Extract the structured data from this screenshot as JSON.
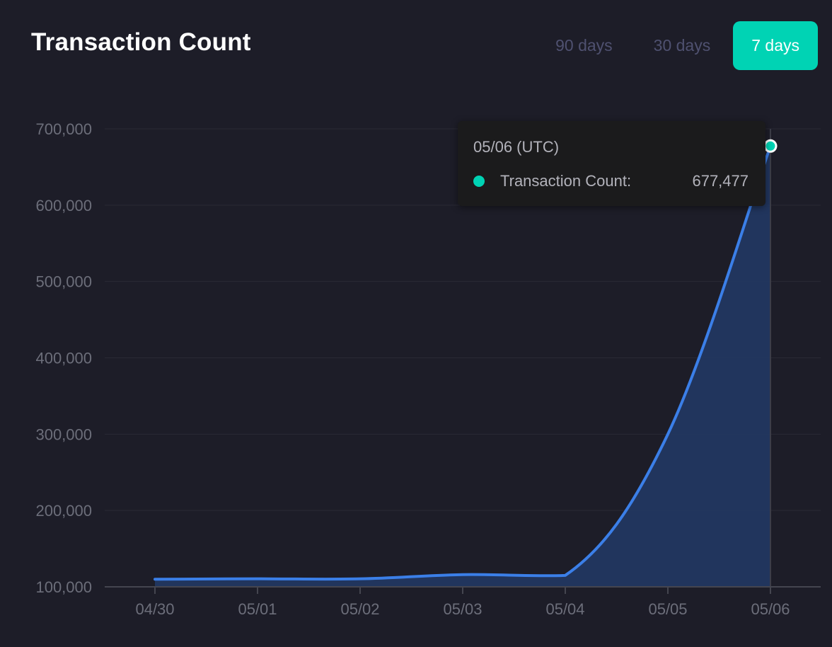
{
  "header": {
    "title": "Transaction Count"
  },
  "range_tabs": [
    {
      "label": "90 days",
      "active": false
    },
    {
      "label": "30 days",
      "active": false
    },
    {
      "label": "7 days",
      "active": true
    }
  ],
  "tooltip": {
    "date": "05/06 (UTC)",
    "series_label": "Transaction Count:",
    "value": "677,477"
  },
  "colors": {
    "line": "#3b7fe8",
    "area": "#223760",
    "accent": "#00d3b4",
    "grid": "#2a2a35",
    "axis": "#44454f"
  },
  "chart_data": {
    "type": "area",
    "title": "Transaction Count",
    "categories": [
      "04/30",
      "05/01",
      "05/02",
      "05/03",
      "05/04",
      "05/05",
      "05/06"
    ],
    "series": [
      {
        "name": "Transaction Count",
        "values": [
          110000,
          110500,
          110500,
          116000,
          115000,
          300000,
          677477
        ]
      }
    ],
    "yticks": [
      100000,
      200000,
      300000,
      400000,
      500000,
      600000,
      700000
    ],
    "ytick_labels": [
      "100,000",
      "200,000",
      "300,000",
      "400,000",
      "500,000",
      "600,000",
      "700,000"
    ],
    "ylim": [
      100000,
      700000
    ],
    "grid": true,
    "highlighted_category": "05/06"
  }
}
